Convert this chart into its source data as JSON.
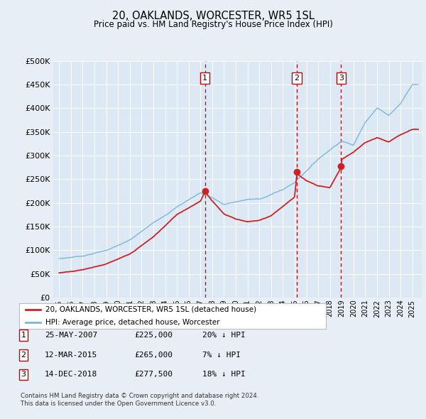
{
  "title": "20, OAKLANDS, WORCESTER, WR5 1SL",
  "subtitle": "Price paid vs. HM Land Registry's House Price Index (HPI)",
  "ylabel_ticks": [
    "£0",
    "£50K",
    "£100K",
    "£150K",
    "£200K",
    "£250K",
    "£300K",
    "£350K",
    "£400K",
    "£450K",
    "£500K"
  ],
  "ytick_values": [
    0,
    50000,
    100000,
    150000,
    200000,
    250000,
    300000,
    350000,
    400000,
    450000,
    500000
  ],
  "xlim_start": 1994.5,
  "xlim_end": 2025.8,
  "ylim_min": 0,
  "ylim_max": 500000,
  "hpi_color": "#7ab8d9",
  "price_color": "#cc2222",
  "vline_color": "#cc0000",
  "sale_dates": [
    2007.39,
    2015.19,
    2018.95
  ],
  "sale_prices": [
    225000,
    265000,
    277500
  ],
  "sale_labels": [
    "1",
    "2",
    "3"
  ],
  "legend_label_price": "20, OAKLANDS, WORCESTER, WR5 1SL (detached house)",
  "legend_label_hpi": "HPI: Average price, detached house, Worcester",
  "table_rows": [
    [
      "1",
      "25-MAY-2007",
      "£225,000",
      "20% ↓ HPI"
    ],
    [
      "2",
      "12-MAR-2015",
      "£265,000",
      "7% ↓ HPI"
    ],
    [
      "3",
      "14-DEC-2018",
      "£277,500",
      "18% ↓ HPI"
    ]
  ],
  "footer": "Contains HM Land Registry data © Crown copyright and database right 2024.\nThis data is licensed under the Open Government Licence v3.0.",
  "background_color": "#e8eef5",
  "plot_bg_color": "#dce8f4",
  "hpi_knots_x": [
    1995,
    1997,
    1999,
    2001,
    2003,
    2005,
    2007,
    2008,
    2009,
    2010,
    2011,
    2012,
    2013,
    2014,
    2015,
    2016,
    2017,
    2018,
    2019,
    2020,
    2021,
    2022,
    2023,
    2024,
    2025
  ],
  "hpi_knots_y": [
    82000,
    88000,
    100000,
    120000,
    155000,
    190000,
    220000,
    210000,
    195000,
    200000,
    205000,
    205000,
    215000,
    225000,
    240000,
    265000,
    290000,
    310000,
    330000,
    320000,
    370000,
    400000,
    385000,
    410000,
    450000
  ],
  "price_knots_x": [
    1995,
    1997,
    1999,
    2001,
    2003,
    2005,
    2007,
    2007.39,
    2008,
    2009,
    2010,
    2011,
    2012,
    2013,
    2014,
    2015,
    2015.19,
    2016,
    2017,
    2018,
    2018.95,
    2019,
    2020,
    2021,
    2022,
    2023,
    2024,
    2025
  ],
  "price_knots_y": [
    52000,
    60000,
    73000,
    92000,
    128000,
    175000,
    205000,
    225000,
    205000,
    178000,
    168000,
    162000,
    165000,
    175000,
    195000,
    215000,
    265000,
    250000,
    238000,
    235000,
    277500,
    295000,
    310000,
    330000,
    340000,
    330000,
    345000,
    355000
  ]
}
